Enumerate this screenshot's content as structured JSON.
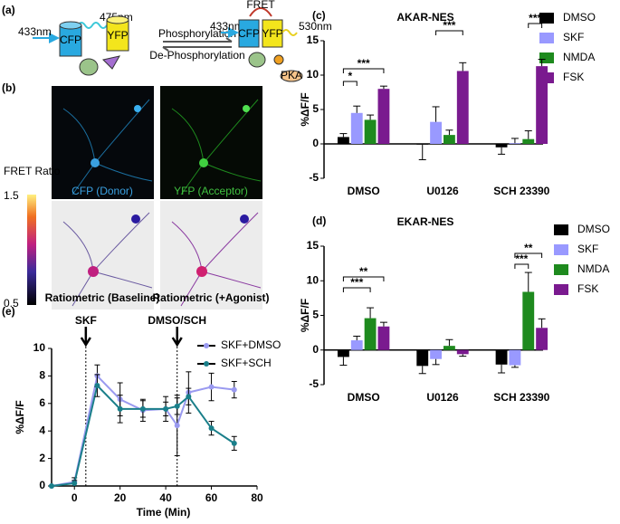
{
  "panels": {
    "labels": [
      "(a)",
      "(b)",
      "(c)",
      "(d)",
      "(e)"
    ],
    "diagram": {
      "left_excitation": "433nm",
      "left_emission": "475nm",
      "left_cfp": "CFP",
      "left_yfp": "YFP",
      "forward": "Phosphorylation",
      "reverse": "De-Phosphorylation",
      "fret": "FRET",
      "right_excitation": "433nm",
      "right_emission": "530nm",
      "right_cfp": "CFP",
      "right_yfp": "YFP",
      "kinase": "PKA"
    },
    "images": {
      "colorbar_title": "FRET Ratio",
      "colorbar_max": 1.5,
      "colorbar_min": 0.5,
      "captions": [
        "CFP (Donor)",
        "YFP (Acceptor)",
        "Ratiometric (Baseline)",
        "Ratiometric (+Agonist)"
      ]
    }
  },
  "chart_data": [
    {
      "type": "bar",
      "title": "AKAR-NES",
      "y_label": "%ΔF/F",
      "categories": [
        "DMSO",
        "U0126",
        "SCH 23390"
      ],
      "series": [
        {
          "name": "DMSO",
          "color": "#000000",
          "values": [
            1.0,
            -0.1,
            -0.5
          ],
          "errors": [
            0.5,
            2.2,
            1.0
          ]
        },
        {
          "name": "SKF",
          "color": "#9999ff",
          "values": [
            4.5,
            3.2,
            0.1
          ],
          "errors": [
            1.0,
            2.2,
            0.7
          ]
        },
        {
          "name": "NMDA",
          "color": "#1e8a1e",
          "values": [
            3.5,
            1.3,
            0.7
          ],
          "errors": [
            0.7,
            0.7,
            1.2
          ]
        },
        {
          "name": "FSK",
          "color": "#7a1a8f",
          "values": [
            8.0,
            10.6,
            11.3
          ],
          "errors": [
            0.4,
            1.2,
            1.0
          ]
        }
      ],
      "annotations": [
        "*",
        "***",
        "***",
        "***"
      ],
      "ylim": [
        -5,
        15
      ],
      "yticks": [
        -5,
        0,
        5,
        10,
        15
      ]
    },
    {
      "type": "bar",
      "title": "EKAR-NES",
      "y_label": "%ΔF/F",
      "categories": [
        "DMSO",
        "U0126",
        "SCH 23390"
      ],
      "series": [
        {
          "name": "DMSO",
          "color": "#000000",
          "values": [
            -1.0,
            -2.3,
            -2.1
          ],
          "errors": [
            1.2,
            1.1,
            1.2
          ]
        },
        {
          "name": "SKF",
          "color": "#9999ff",
          "values": [
            1.4,
            -1.3,
            -2.2
          ],
          "errors": [
            0.6,
            0.8,
            0.3
          ]
        },
        {
          "name": "NMDA",
          "color": "#1e8a1e",
          "values": [
            4.6,
            0.6,
            8.4
          ],
          "errors": [
            1.5,
            0.9,
            2.8
          ]
        },
        {
          "name": "FSK",
          "color": "#7a1a8f",
          "values": [
            3.4,
            -0.6,
            3.2
          ],
          "errors": [
            0.6,
            0.3,
            1.3
          ]
        }
      ],
      "annotations": [
        "**",
        "***",
        "**",
        "***"
      ],
      "ylim": [
        -5,
        15
      ],
      "yticks": [
        -5,
        0,
        5,
        10,
        15
      ]
    },
    {
      "type": "line",
      "x_label": "Time (Min)",
      "y_label": "%ΔF/F",
      "x": [
        -10,
        0,
        10,
        20,
        30,
        40,
        45,
        50,
        60,
        70
      ],
      "series": [
        {
          "name": "SKF+DMSO",
          "color": "#9a9af0",
          "values": [
            0,
            0.3,
            8.0,
            6.3,
            5.5,
            5.6,
            4.4,
            6.8,
            7.2,
            7.0
          ],
          "errors": [
            0,
            0.3,
            0.8,
            1.2,
            0.8,
            0.9,
            2.2,
            1.5,
            1.0,
            0.6
          ]
        },
        {
          "name": "SKF+SCH",
          "color": "#1a7f8a",
          "values": [
            0,
            0.2,
            7.3,
            5.6,
            5.6,
            5.6,
            5.8,
            6.5,
            4.2,
            3.1
          ],
          "errors": [
            0,
            0.2,
            0.8,
            1.0,
            0.6,
            0.5,
            0.6,
            0.6,
            0.5,
            0.5
          ]
        }
      ],
      "markers": [
        {
          "x": 5,
          "label": "SKF"
        },
        {
          "x": 45,
          "label": "DMSO/SCH"
        }
      ],
      "xlim": [
        -10,
        80
      ],
      "xticks": [
        0,
        20,
        40,
        60,
        80
      ],
      "ylim": [
        0,
        10
      ],
      "yticks": [
        0,
        2,
        4,
        6,
        8,
        10
      ]
    }
  ]
}
